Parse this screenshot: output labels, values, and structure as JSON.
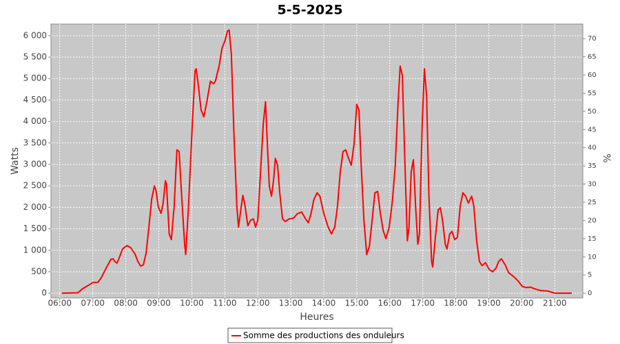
{
  "chart_data": {
    "type": "line",
    "title": "5-5-2025",
    "x_label": "Heures",
    "y_label": "Watts",
    "y2_label": "%",
    "xlim": [
      344,
      1311
    ],
    "xticks": [
      {
        "value": 360,
        "label": "06:00"
      },
      {
        "value": 420,
        "label": "07:00"
      },
      {
        "value": 480,
        "label": "08:00"
      },
      {
        "value": 540,
        "label": "09:00"
      },
      {
        "value": 600,
        "label": "10:00"
      },
      {
        "value": 660,
        "label": "11:00"
      },
      {
        "value": 720,
        "label": "12:00"
      },
      {
        "value": 780,
        "label": "13:00"
      },
      {
        "value": 840,
        "label": "14:00"
      },
      {
        "value": 900,
        "label": "15:00"
      },
      {
        "value": 960,
        "label": "16:00"
      },
      {
        "value": 1020,
        "label": "17:00"
      },
      {
        "value": 1080,
        "label": "18:00"
      },
      {
        "value": 1140,
        "label": "19:00"
      },
      {
        "value": 1200,
        "label": "20:00"
      },
      {
        "value": 1260,
        "label": "21:00"
      }
    ],
    "ylim": [
      -110,
      6270
    ],
    "yticks": [
      0,
      500,
      {
        "value": 1000,
        "label": "1 000"
      },
      {
        "value": 1500,
        "label": "1 500"
      },
      {
        "value": 2000,
        "label": "2 000"
      },
      {
        "value": 2500,
        "label": "2 500"
      },
      {
        "value": 3000,
        "label": "3 000"
      },
      {
        "value": 3500,
        "label": "3 500"
      },
      {
        "value": 4000,
        "label": "4 000"
      },
      {
        "value": 4500,
        "label": "4 500"
      },
      {
        "value": 5000,
        "label": "5 000"
      },
      {
        "value": 5500,
        "label": "5 500"
      },
      {
        "value": 6000,
        "label": "6 000"
      }
    ],
    "y2lim": [
      -1.3,
      74
    ],
    "y2ticks": [
      0,
      5,
      10,
      15,
      20,
      25,
      30,
      35,
      40,
      45,
      50,
      55,
      60,
      65,
      70
    ],
    "grid": true,
    "legend": "bottom",
    "x": [
      364,
      393,
      401,
      414,
      421,
      429,
      436,
      445,
      453,
      457,
      460,
      464,
      468,
      474,
      482,
      489,
      497,
      502,
      507,
      512,
      517,
      522,
      527,
      532,
      535,
      539,
      544,
      548,
      552,
      554,
      559,
      563,
      568,
      573,
      577,
      582,
      587,
      589,
      594,
      601,
      606,
      608,
      612,
      617,
      622,
      627,
      634,
      640,
      643,
      650,
      655,
      660,
      665,
      668,
      672,
      677,
      682,
      685,
      690,
      693,
      697,
      702,
      707,
      712,
      716,
      720,
      725,
      730,
      734,
      737,
      741,
      745,
      749,
      752,
      756,
      760,
      765,
      770,
      777,
      785,
      792,
      800,
      807,
      812,
      817,
      822,
      828,
      833,
      840,
      848,
      854,
      860,
      865,
      870,
      875,
      880,
      884,
      890,
      895,
      900,
      904,
      908,
      913,
      918,
      923,
      928,
      933,
      938,
      943,
      948,
      953,
      959,
      965,
      970,
      975,
      979,
      983,
      987,
      992,
      995,
      999,
      1003,
      1007,
      1011,
      1014,
      1019,
      1023,
      1027,
      1031,
      1036,
      1038,
      1043,
      1048,
      1052,
      1056,
      1061,
      1064,
      1069,
      1073,
      1078,
      1083,
      1088,
      1093,
      1098,
      1103,
      1109,
      1113,
      1118,
      1123,
      1128,
      1134,
      1141,
      1147,
      1153,
      1158,
      1163,
      1170,
      1176,
      1185,
      1193,
      1201,
      1208,
      1216,
      1224,
      1235,
      1247,
      1260,
      1291
    ],
    "series": [
      {
        "name": "Somme des productions des onduleurs",
        "color": "#ff0000",
        "values": [
          0,
          10,
          100,
          200,
          250,
          250,
          370,
          600,
          790,
          800,
          740,
          700,
          820,
          1030,
          1110,
          1060,
          910,
          740,
          630,
          660,
          930,
          1540,
          2180,
          2500,
          2390,
          2020,
          1860,
          2100,
          2620,
          2540,
          1380,
          1250,
          2020,
          3340,
          3300,
          2180,
          1140,
          900,
          2020,
          3950,
          5180,
          5230,
          4830,
          4270,
          4110,
          4430,
          4940,
          4880,
          4940,
          5310,
          5710,
          5870,
          6110,
          6130,
          5550,
          3630,
          2020,
          1540,
          2020,
          2280,
          2020,
          1570,
          1700,
          1730,
          1540,
          1700,
          2820,
          3950,
          4460,
          3630,
          2500,
          2260,
          2660,
          3140,
          2980,
          2340,
          1730,
          1670,
          1730,
          1750,
          1850,
          1890,
          1730,
          1640,
          1860,
          2180,
          2340,
          2260,
          1860,
          1540,
          1380,
          1540,
          2020,
          2820,
          3300,
          3340,
          3180,
          2980,
          3470,
          4400,
          4270,
          2980,
          1700,
          900,
          1090,
          1700,
          2340,
          2370,
          1860,
          1460,
          1270,
          1540,
          2180,
          2980,
          4430,
          5290,
          5070,
          3300,
          1220,
          1540,
          2820,
          3110,
          2020,
          1140,
          1380,
          3950,
          5230,
          4590,
          2340,
          740,
          610,
          1300,
          1940,
          1990,
          1700,
          1140,
          1030,
          1380,
          1440,
          1250,
          1300,
          2020,
          2340,
          2260,
          2100,
          2260,
          2020,
          1220,
          740,
          640,
          710,
          550,
          500,
          580,
          740,
          800,
          660,
          480,
          390,
          290,
          160,
          130,
          140,
          100,
          60,
          50,
          0,
          0
        ]
      }
    ]
  }
}
